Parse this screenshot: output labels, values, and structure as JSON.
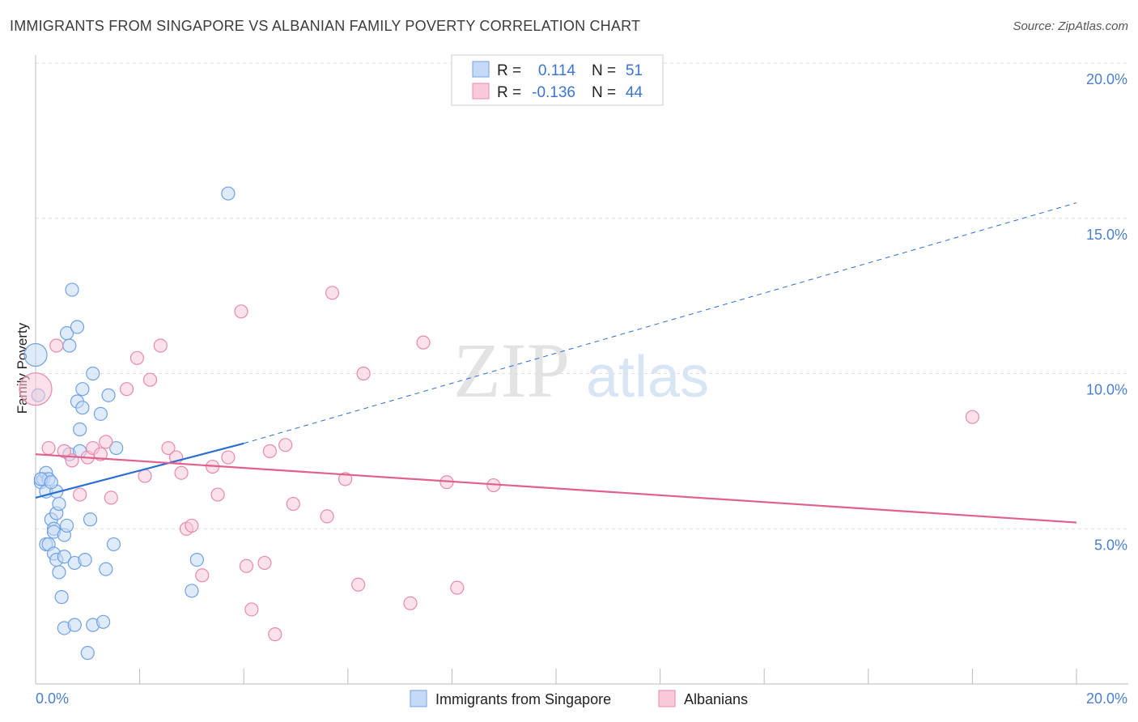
{
  "header": {
    "title": "IMMIGRANTS FROM SINGAPORE VS ALBANIAN FAMILY POVERTY CORRELATION CHART",
    "source": "Source: ZipAtlas.com"
  },
  "watermark": {
    "zip": "ZIP",
    "atlas": "atlas"
  },
  "legend": {
    "rows": [
      {
        "r_label": "R =",
        "r_value": "0.114",
        "n_label": "N =",
        "n_value": "51"
      },
      {
        "r_label": "R =",
        "r_value": "-0.136",
        "n_label": "N =",
        "n_value": "44"
      }
    ]
  },
  "chart_data": {
    "type": "scatter",
    "title": "IMMIGRANTS FROM SINGAPORE VS ALBANIAN FAMILY POVERTY CORRELATION CHART",
    "xlabel": "",
    "ylabel": "Family Poverty",
    "xlim": [
      0,
      20
    ],
    "ylim": [
      0,
      20
    ],
    "x_tick_labels": [
      "0.0%",
      "20.0%"
    ],
    "y_ticks": [
      {
        "value": 5,
        "label": "5.0%"
      },
      {
        "value": 10,
        "label": "10.0%"
      },
      {
        "value": 15,
        "label": "15.0%"
      },
      {
        "value": 20,
        "label": "20.0%"
      }
    ],
    "series": [
      {
        "name": "Immigrants from Singapore",
        "color": "#6fa1e6",
        "fill": "#c6daf5",
        "trend_color": "#2a6fd0",
        "r": 0.114,
        "n": 51,
        "trend": {
          "x0": 0.0,
          "y0": 6.0,
          "x1": 4.0,
          "y1": 7.75,
          "dash_to_x": 20.0,
          "dash_to_y": 15.5
        },
        "points": [
          [
            0.0,
            10.6
          ],
          [
            0.05,
            9.3
          ],
          [
            0.1,
            6.5
          ],
          [
            0.15,
            6.6
          ],
          [
            0.2,
            6.8
          ],
          [
            0.25,
            6.6
          ],
          [
            0.2,
            6.2
          ],
          [
            0.2,
            4.5
          ],
          [
            0.25,
            4.5
          ],
          [
            0.3,
            5.3
          ],
          [
            0.35,
            5.0
          ],
          [
            0.35,
            4.9
          ],
          [
            0.4,
            5.5
          ],
          [
            0.35,
            4.2
          ],
          [
            0.4,
            4.0
          ],
          [
            0.45,
            3.6
          ],
          [
            0.4,
            6.2
          ],
          [
            0.45,
            5.8
          ],
          [
            0.5,
            2.8
          ],
          [
            0.55,
            4.8
          ],
          [
            0.55,
            4.1
          ],
          [
            0.55,
            1.8
          ],
          [
            0.6,
            5.1
          ],
          [
            0.6,
            11.3
          ],
          [
            0.65,
            10.9
          ],
          [
            0.65,
            7.4
          ],
          [
            0.7,
            12.7
          ],
          [
            0.75,
            1.9
          ],
          [
            0.75,
            3.9
          ],
          [
            0.8,
            11.5
          ],
          [
            0.8,
            9.1
          ],
          [
            0.85,
            8.2
          ],
          [
            0.85,
            7.5
          ],
          [
            0.9,
            8.9
          ],
          [
            0.9,
            9.5
          ],
          [
            0.95,
            4.0
          ],
          [
            1.0,
            1.0
          ],
          [
            1.05,
            5.3
          ],
          [
            1.1,
            1.9
          ],
          [
            1.1,
            10.0
          ],
          [
            1.25,
            8.7
          ],
          [
            1.3,
            2.0
          ],
          [
            1.35,
            3.7
          ],
          [
            1.4,
            9.3
          ],
          [
            1.5,
            4.5
          ],
          [
            1.55,
            7.6
          ],
          [
            3.1,
            4.0
          ],
          [
            3.0,
            3.0
          ],
          [
            3.7,
            15.8
          ],
          [
            0.1,
            6.6
          ],
          [
            0.3,
            6.5
          ]
        ]
      },
      {
        "name": "Albanians",
        "color": "#e88aaa",
        "fill": "#f7c9d9",
        "trend_color": "#e0608e",
        "r": -0.136,
        "n": 44,
        "trend": {
          "x0": 0.0,
          "y0": 7.4,
          "x1": 20.0,
          "y1": 5.2
        },
        "points": [
          [
            0.0,
            9.5
          ],
          [
            0.25,
            7.6
          ],
          [
            0.4,
            10.9
          ],
          [
            0.55,
            7.5
          ],
          [
            0.7,
            7.2
          ],
          [
            0.85,
            6.1
          ],
          [
            1.0,
            7.3
          ],
          [
            1.1,
            7.6
          ],
          [
            1.25,
            7.4
          ],
          [
            1.35,
            7.8
          ],
          [
            1.45,
            6.0
          ],
          [
            1.75,
            9.5
          ],
          [
            1.95,
            10.5
          ],
          [
            2.1,
            6.7
          ],
          [
            2.2,
            9.8
          ],
          [
            2.4,
            10.9
          ],
          [
            2.55,
            7.6
          ],
          [
            2.7,
            7.3
          ],
          [
            2.8,
            6.8
          ],
          [
            2.9,
            5.0
          ],
          [
            3.0,
            5.1
          ],
          [
            3.2,
            3.5
          ],
          [
            3.4,
            7.0
          ],
          [
            3.5,
            6.1
          ],
          [
            3.7,
            7.3
          ],
          [
            3.95,
            12.0
          ],
          [
            4.05,
            3.8
          ],
          [
            4.15,
            2.4
          ],
          [
            4.4,
            3.9
          ],
          [
            4.5,
            7.5
          ],
          [
            4.6,
            1.6
          ],
          [
            4.8,
            7.7
          ],
          [
            4.95,
            5.8
          ],
          [
            5.6,
            5.4
          ],
          [
            5.7,
            12.6
          ],
          [
            5.95,
            6.6
          ],
          [
            6.2,
            3.2
          ],
          [
            6.3,
            10.0
          ],
          [
            7.2,
            2.6
          ],
          [
            7.45,
            11.0
          ],
          [
            7.9,
            6.5
          ],
          [
            8.1,
            3.1
          ],
          [
            8.8,
            6.4
          ],
          [
            18.0,
            8.6
          ]
        ]
      }
    ]
  },
  "bottom_legend": {
    "items": [
      {
        "label": "Immigrants from Singapore"
      },
      {
        "label": "Albanians"
      }
    ]
  }
}
